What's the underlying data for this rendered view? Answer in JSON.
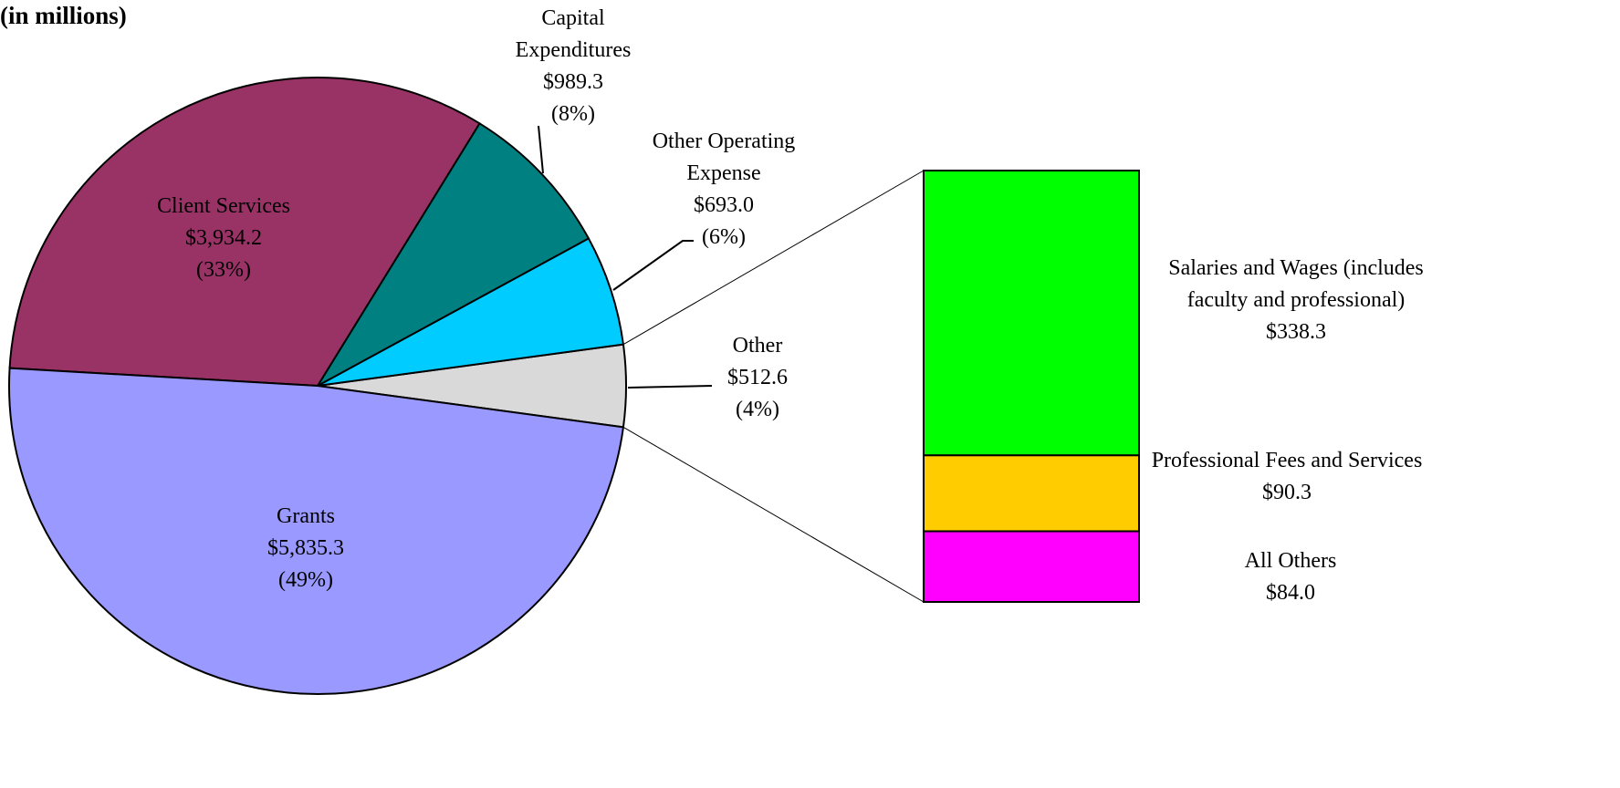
{
  "chart_data": {
    "type": "pie-of-bar",
    "subtitle": "(in millions)",
    "pie": {
      "categories": [
        "Grants",
        "Client Services",
        "Capital Expenditures",
        "Other Operating Expense",
        "Other"
      ],
      "values": [
        5835.3,
        3934.2,
        989.3,
        693.0,
        512.6
      ],
      "value_labels": [
        "$5,835.3",
        "$3,934.2",
        "$989.3",
        "$693.0",
        "$512.6"
      ],
      "percent_labels": [
        "(49%)",
        "(33%)",
        "(8%)",
        "(6%)",
        "(4%)"
      ],
      "colors": [
        "#9999ff",
        "#993366",
        "#008080",
        "#00ccff",
        "#d9d9d9"
      ]
    },
    "bar": {
      "categories": [
        "Salaries and Wages (includes faculty and professional)",
        "Professional Fees and Services",
        "All Others"
      ],
      "values": [
        338.3,
        90.3,
        84.0
      ],
      "value_labels": [
        "$338.3",
        "$90.3",
        "$84.0"
      ],
      "colors": [
        "#00ff00",
        "#ffcc00",
        "#ff00ff"
      ]
    }
  }
}
